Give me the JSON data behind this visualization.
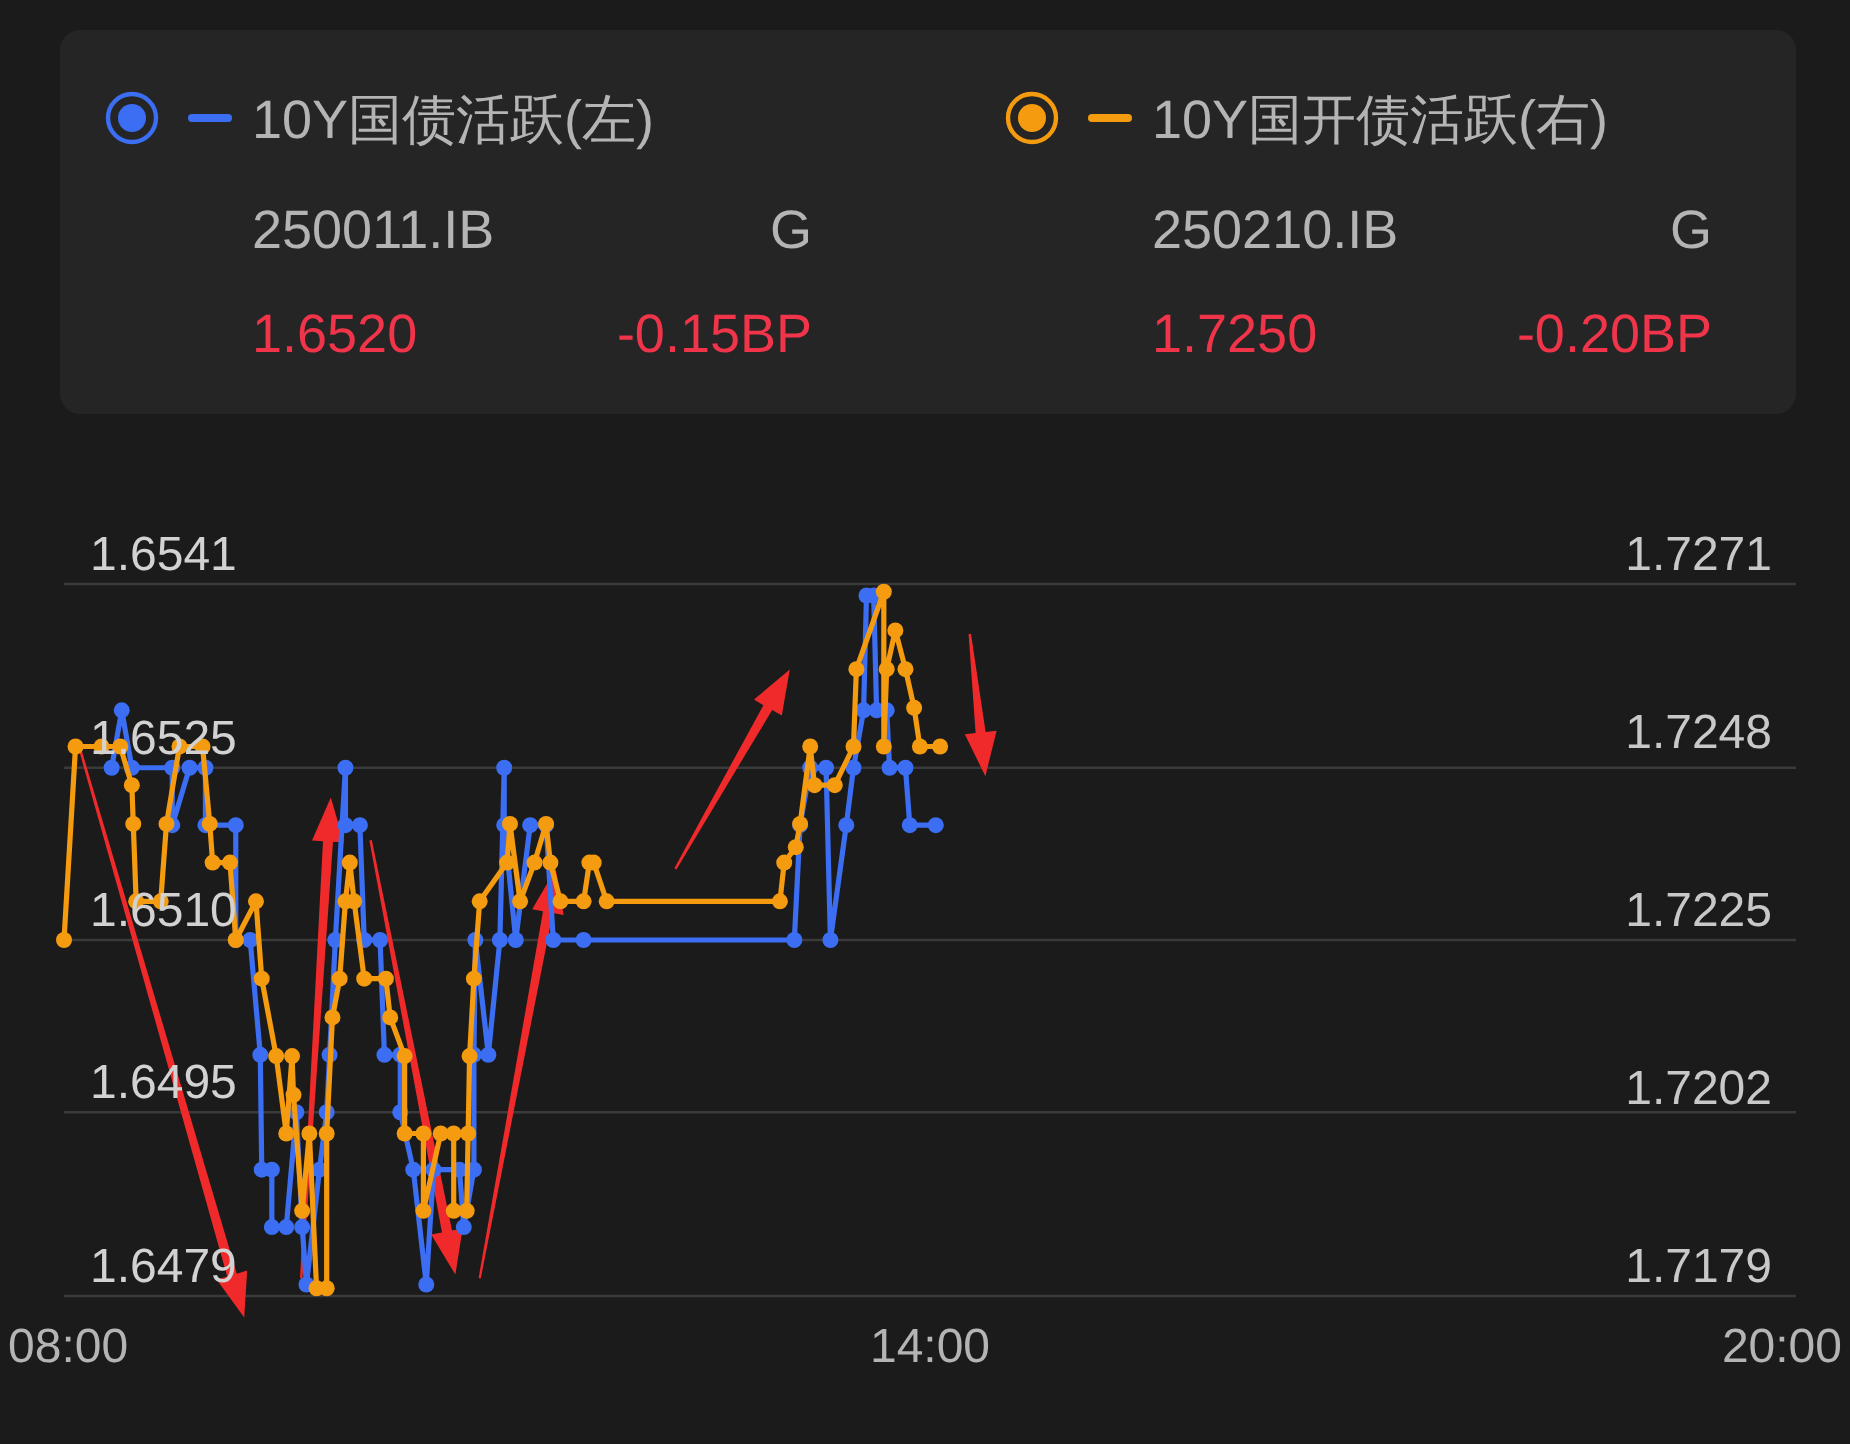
{
  "chart_data": {
    "type": "line",
    "xlim": [
      8,
      20
    ],
    "xticks": [
      {
        "value": 8,
        "label": "08:00"
      },
      {
        "value": 14,
        "label": "14:00"
      },
      {
        "value": 20,
        "label": "20:00"
      }
    ],
    "ylim": [
      1.6479,
      1.6541
    ],
    "yticks": [
      1.6479,
      1.6495,
      {
        "value": 1.651,
        "label": "1.6510"
      },
      1.6525,
      1.6541
    ],
    "y2lim": [
      1.7179,
      1.7271
    ],
    "y2ticks": [
      1.7179,
      1.7202,
      1.7225,
      1.7248,
      1.7271
    ],
    "grid": "y",
    "legend": "top",
    "marker": "circle",
    "line_style": "solid",
    "annotations": [
      "250011.IB",
      "G",
      "1.6520",
      "-0.15BP",
      "250210.IB",
      "G",
      "1.7250",
      "-0.20BP"
    ],
    "series": [
      {
        "name": "10Y国债活跃(左)",
        "color": "#3b6ef2",
        "x": [
          8.33,
          8.4,
          8.47,
          8.75,
          8.75,
          8.87,
          8.98,
          8.98,
          9.19,
          9.19,
          9.29,
          9.36,
          9.37,
          9.44,
          9.44,
          9.54,
          9.61,
          9.65,
          9.68,
          9.77,
          9.82,
          9.84,
          9.88,
          9.95,
          9.95,
          10.05,
          10.08,
          10.19,
          10.22,
          10.33,
          10.33,
          10.42,
          10.51,
          10.56,
          10.74,
          10.77,
          10.84,
          10.84,
          10.85,
          10.94,
          11.02,
          11.05,
          11.05,
          11.13,
          11.23,
          11.34,
          11.39,
          11.6,
          13.06,
          13.1,
          13.17,
          13.28,
          13.31,
          13.42,
          13.47,
          13.54,
          13.56,
          13.61,
          13.63,
          13.7,
          13.72,
          13.83,
          13.86,
          14.04
        ],
        "values": [
          1.6525,
          1.653,
          1.6525,
          1.6525,
          1.652,
          1.6525,
          1.6525,
          1.652,
          1.652,
          1.651,
          1.651,
          1.65,
          1.649,
          1.649,
          1.6485,
          1.6485,
          1.6495,
          1.6485,
          1.648,
          1.649,
          1.6495,
          1.65,
          1.651,
          1.6525,
          1.652,
          1.652,
          1.651,
          1.651,
          1.65,
          1.65,
          1.6495,
          1.649,
          1.648,
          1.649,
          1.649,
          1.6485,
          1.649,
          1.65,
          1.651,
          1.65,
          1.651,
          1.6525,
          1.652,
          1.651,
          1.652,
          1.652,
          1.651,
          1.651,
          1.651,
          1.652,
          1.6525,
          1.6525,
          1.651,
          1.652,
          1.6525,
          1.653,
          1.654,
          1.654,
          1.653,
          1.653,
          1.6525,
          1.6525,
          1.652,
          1.652
        ]
      },
      {
        "name": "10Y国开债活跃(右)",
        "color": "#f59b0f",
        "axis": "y2",
        "x": [
          8.0,
          8.08,
          8.26,
          8.39,
          8.47,
          8.48,
          8.5,
          8.67,
          8.71,
          8.8,
          8.96,
          9.01,
          9.03,
          9.15,
          9.19,
          9.33,
          9.37,
          9.47,
          9.54,
          9.58,
          9.59,
          9.65,
          9.7,
          9.75,
          9.82,
          9.82,
          9.86,
          9.91,
          9.95,
          9.98,
          10.01,
          10.08,
          10.23,
          10.26,
          10.36,
          10.36,
          10.49,
          10.49,
          10.61,
          10.7,
          10.7,
          10.79,
          10.8,
          10.81,
          10.84,
          10.88,
          11.07,
          11.09,
          11.16,
          11.26,
          11.34,
          11.37,
          11.44,
          11.6,
          11.64,
          11.67,
          11.76,
          12.96,
          12.99,
          13.07,
          13.1,
          13.17,
          13.2,
          13.34,
          13.47,
          13.49,
          13.68,
          13.68,
          13.7,
          13.76,
          13.83,
          13.89,
          13.93,
          14.07
        ],
        "values": [
          1.7225,
          1.725,
          1.725,
          1.725,
          1.7245,
          1.724,
          1.723,
          1.723,
          1.724,
          1.725,
          1.725,
          1.724,
          1.7235,
          1.7235,
          1.7225,
          1.723,
          1.722,
          1.721,
          1.72,
          1.721,
          1.7205,
          1.719,
          1.72,
          1.718,
          1.718,
          1.72,
          1.7215,
          1.722,
          1.723,
          1.7235,
          1.723,
          1.722,
          1.722,
          1.7215,
          1.721,
          1.72,
          1.72,
          1.719,
          1.72,
          1.72,
          1.719,
          1.719,
          1.72,
          1.721,
          1.722,
          1.723,
          1.7235,
          1.724,
          1.723,
          1.7235,
          1.724,
          1.7235,
          1.723,
          1.723,
          1.7235,
          1.7235,
          1.723,
          1.723,
          1.7235,
          1.7237,
          1.724,
          1.725,
          1.7245,
          1.7245,
          1.725,
          1.726,
          1.727,
          1.725,
          1.726,
          1.7265,
          1.726,
          1.7255,
          1.725,
          1.725
        ]
      }
    ]
  }
}
